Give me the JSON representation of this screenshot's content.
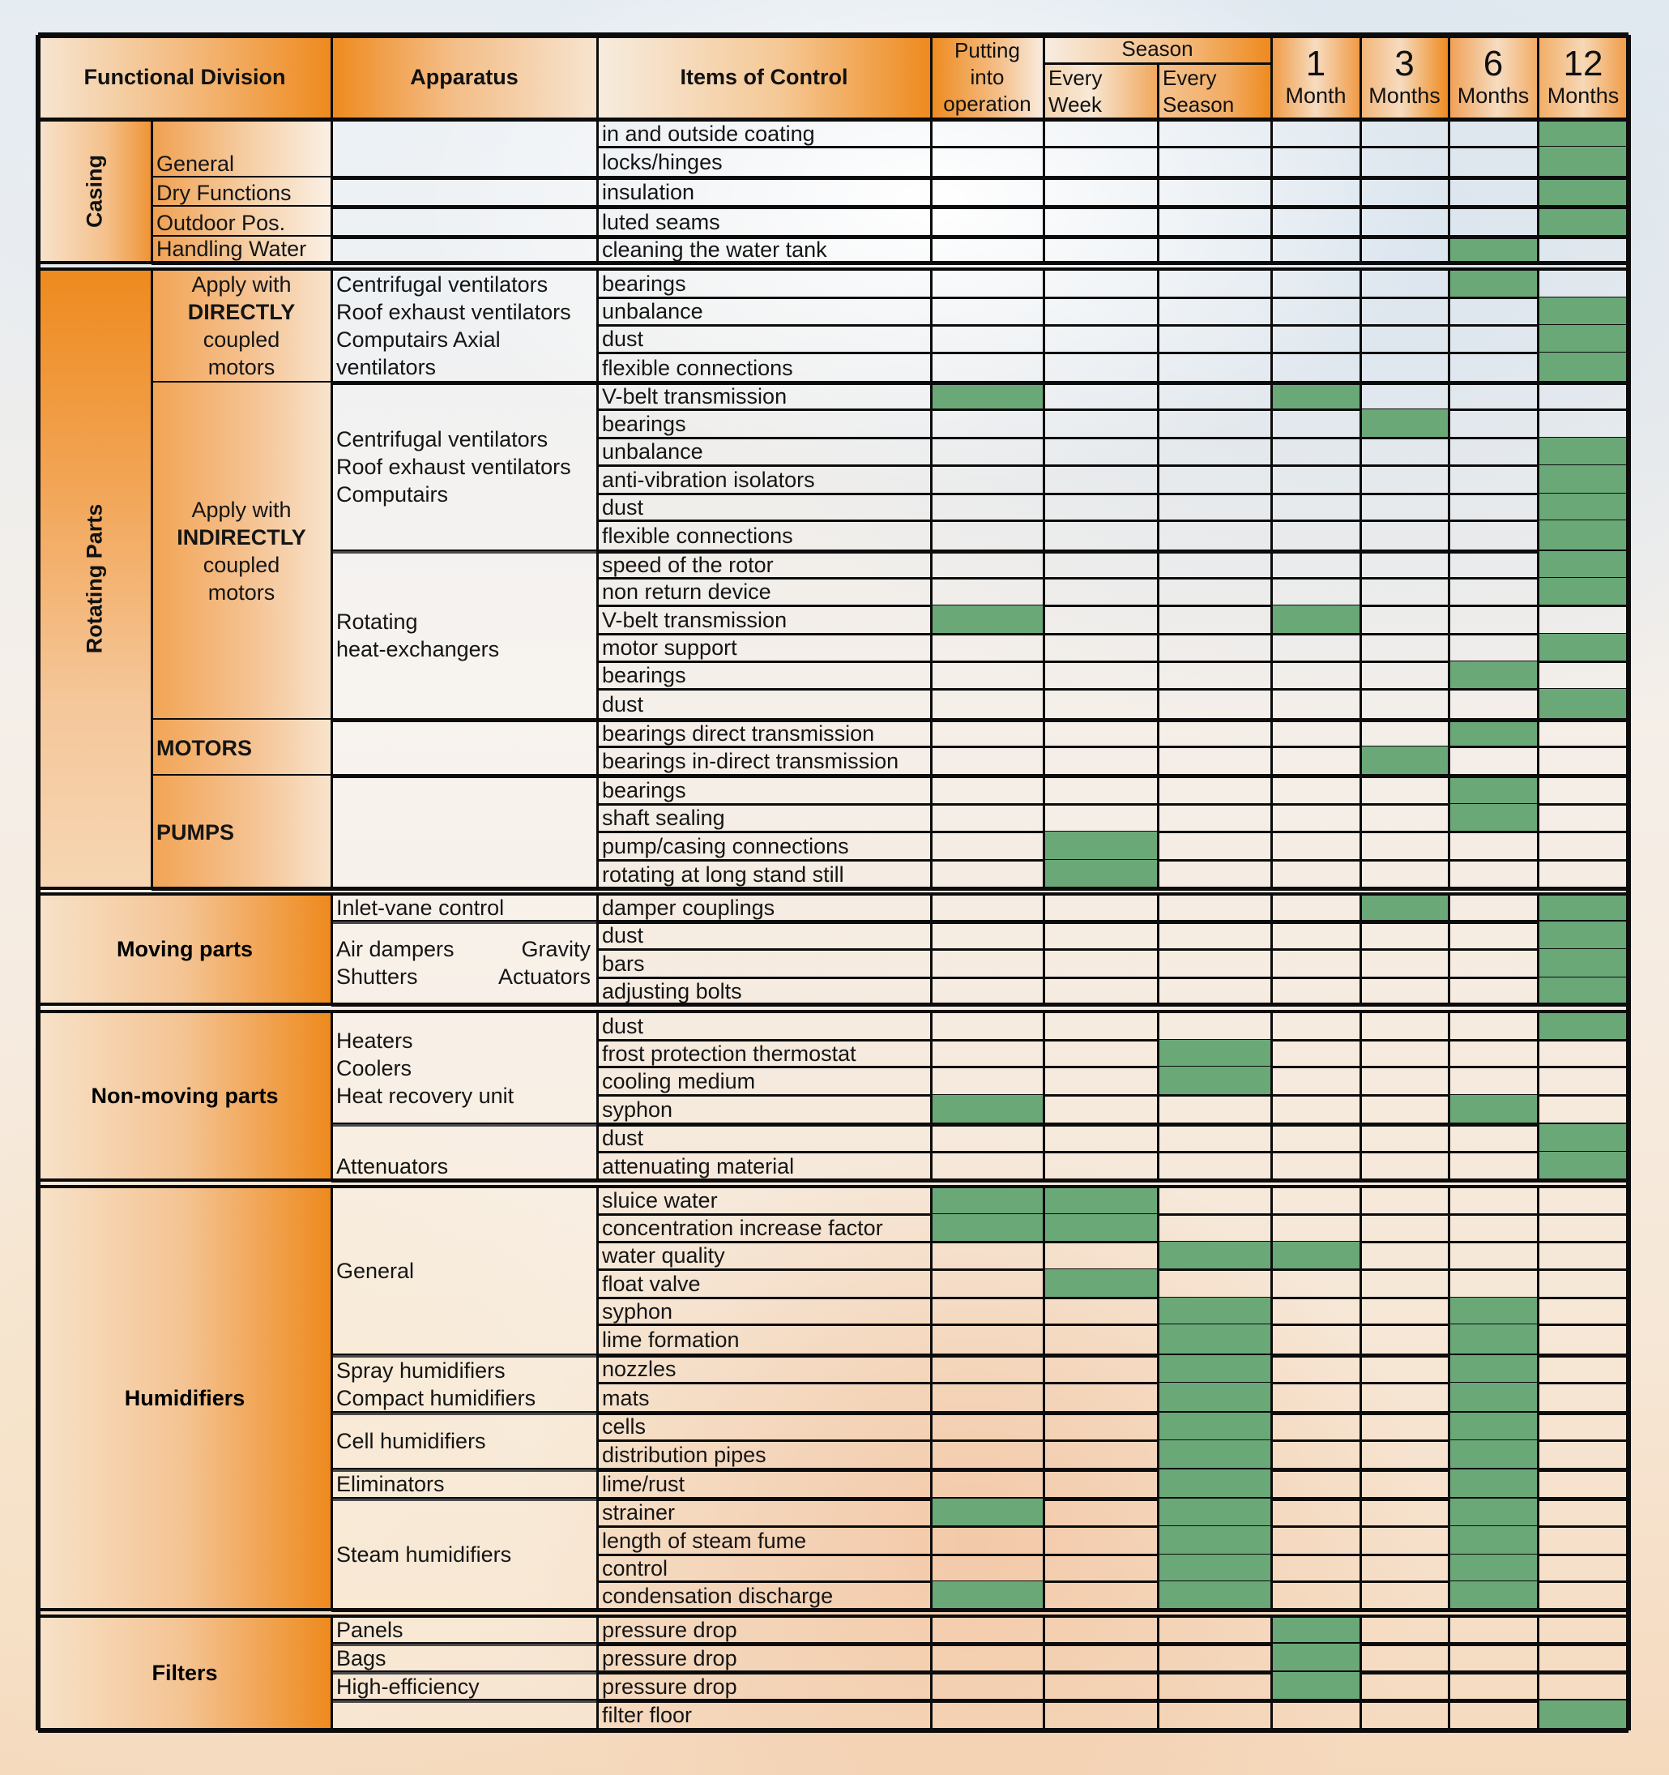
{
  "header": {
    "functional_division": "Functional Division",
    "apparatus": "Apparatus",
    "items_of_control": "Items of Control",
    "putting_into_operation": [
      "Putting",
      "into",
      "operation"
    ],
    "season_group": "Season",
    "every_week": [
      "Every",
      "Week"
    ],
    "every_season": [
      "Every",
      "Season"
    ],
    "month_1": {
      "num": "1",
      "label": "Month"
    },
    "month_3": {
      "num": "3",
      "label": "Months"
    },
    "month_6": {
      "num": "6",
      "label": "Months"
    },
    "month_12": {
      "num": "12",
      "label": "Months"
    }
  },
  "interval_columns": [
    "Putting into operation",
    "Every Week",
    "Every Season",
    "1 Month",
    "3 Months",
    "6 Months",
    "12 Months"
  ],
  "colors": {
    "check_green": "#6aa878",
    "header_orange": "#ee8a1e",
    "grid_line": "#0c0c0c"
  },
  "sections": [
    {
      "name": "Casing",
      "label_orientation": "vertical",
      "subgroups": [
        {
          "label": [
            "General"
          ],
          "apparatus": [],
          "items": [
            {
              "item": "in and outside coating",
              "checks": [
                0,
                0,
                0,
                0,
                0,
                0,
                1
              ]
            },
            {
              "item": "locks/hinges",
              "checks": [
                0,
                0,
                0,
                0,
                0,
                0,
                1
              ]
            }
          ]
        },
        {
          "label": [
            "Dry Functions"
          ],
          "apparatus": [],
          "items": [
            {
              "item": "insulation",
              "checks": [
                0,
                0,
                0,
                0,
                0,
                0,
                1
              ]
            }
          ]
        },
        {
          "label": [
            "Outdoor Pos."
          ],
          "apparatus": [],
          "items": [
            {
              "item": "luted seams",
              "checks": [
                0,
                0,
                0,
                0,
                0,
                0,
                1
              ]
            }
          ]
        },
        {
          "label": [
            "Handling Water"
          ],
          "apparatus": [],
          "items": [
            {
              "item": "cleaning the water tank",
              "checks": [
                0,
                0,
                0,
                0,
                0,
                1,
                0
              ]
            }
          ]
        }
      ]
    },
    {
      "name": "Rotating Parts",
      "label_orientation": "vertical",
      "subgroups": [
        {
          "label": [
            "Apply with",
            "DIRECTLY",
            "coupled",
            "motors"
          ],
          "apparatus_groups": [
            {
              "apparatus": [
                "Centrifugal ventilators",
                "Roof exhaust ventilators",
                "Computairs Axial",
                "ventilators"
              ],
              "items": [
                {
                  "item": "bearings",
                  "checks": [
                    0,
                    0,
                    0,
                    0,
                    0,
                    1,
                    0
                  ]
                },
                {
                  "item": "unbalance",
                  "checks": [
                    0,
                    0,
                    0,
                    0,
                    0,
                    0,
                    1
                  ]
                },
                {
                  "item": "dust",
                  "checks": [
                    0,
                    0,
                    0,
                    0,
                    0,
                    0,
                    1
                  ]
                },
                {
                  "item": "flexible connections",
                  "checks": [
                    0,
                    0,
                    0,
                    0,
                    0,
                    0,
                    1
                  ]
                }
              ]
            }
          ]
        },
        {
          "label": [
            "Apply with",
            "INDIRECTLY",
            "coupled",
            "motors"
          ],
          "apparatus_groups": [
            {
              "apparatus": [
                "Centrifugal ventilators",
                "Roof exhaust ventilators",
                "Computairs"
              ],
              "items": [
                {
                  "item": "V-belt transmission",
                  "checks": [
                    1,
                    0,
                    0,
                    1,
                    0,
                    0,
                    0
                  ]
                },
                {
                  "item": "bearings",
                  "checks": [
                    0,
                    0,
                    0,
                    0,
                    1,
                    0,
                    0
                  ]
                },
                {
                  "item": "unbalance",
                  "checks": [
                    0,
                    0,
                    0,
                    0,
                    0,
                    0,
                    1
                  ]
                },
                {
                  "item": "anti-vibration isolators",
                  "checks": [
                    0,
                    0,
                    0,
                    0,
                    0,
                    0,
                    1
                  ]
                },
                {
                  "item": "dust",
                  "checks": [
                    0,
                    0,
                    0,
                    0,
                    0,
                    0,
                    1
                  ]
                },
                {
                  "item": "flexible connections",
                  "checks": [
                    0,
                    0,
                    0,
                    0,
                    0,
                    0,
                    1
                  ]
                }
              ]
            },
            {
              "apparatus": [
                "Rotating",
                "heat-exchangers"
              ],
              "items": [
                {
                  "item": "speed of the rotor",
                  "checks": [
                    0,
                    0,
                    0,
                    0,
                    0,
                    0,
                    1
                  ]
                },
                {
                  "item": "non return device",
                  "checks": [
                    0,
                    0,
                    0,
                    0,
                    0,
                    0,
                    1
                  ]
                },
                {
                  "item": "V-belt transmission",
                  "checks": [
                    1,
                    0,
                    0,
                    1,
                    0,
                    0,
                    0
                  ]
                },
                {
                  "item": "motor support",
                  "checks": [
                    0,
                    0,
                    0,
                    0,
                    0,
                    0,
                    1
                  ]
                },
                {
                  "item": "bearings",
                  "checks": [
                    0,
                    0,
                    0,
                    0,
                    0,
                    1,
                    0
                  ]
                },
                {
                  "item": "dust",
                  "checks": [
                    0,
                    0,
                    0,
                    0,
                    0,
                    0,
                    1
                  ]
                }
              ]
            }
          ]
        },
        {
          "label": [
            "MOTORS"
          ],
          "apparatus_groups": [
            {
              "apparatus": [],
              "items": [
                {
                  "item": "bearings direct transmission",
                  "checks": [
                    0,
                    0,
                    0,
                    0,
                    0,
                    1,
                    0
                  ]
                },
                {
                  "item": "bearings in-direct transmission",
                  "checks": [
                    0,
                    0,
                    0,
                    0,
                    1,
                    0,
                    0
                  ]
                }
              ]
            }
          ]
        },
        {
          "label": [
            "PUMPS"
          ],
          "apparatus_groups": [
            {
              "apparatus": [],
              "items": [
                {
                  "item": "bearings",
                  "checks": [
                    0,
                    0,
                    0,
                    0,
                    0,
                    1,
                    0
                  ]
                },
                {
                  "item": "shaft sealing",
                  "checks": [
                    0,
                    0,
                    0,
                    0,
                    0,
                    1,
                    0
                  ]
                },
                {
                  "item": "pump/casing connections",
                  "checks": [
                    0,
                    1,
                    0,
                    0,
                    0,
                    0,
                    0
                  ]
                },
                {
                  "item": "rotating at long stand still",
                  "checks": [
                    0,
                    1,
                    0,
                    0,
                    0,
                    0,
                    0
                  ]
                }
              ]
            }
          ]
        }
      ]
    },
    {
      "name": "Moving parts",
      "label_orientation": "horizontal",
      "apparatus_groups": [
        {
          "apparatus": [
            "Inlet-vane control"
          ],
          "items": [
            {
              "item": "damper couplings",
              "checks": [
                0,
                0,
                0,
                0,
                1,
                0,
                1
              ]
            }
          ]
        },
        {
          "apparatus": [
            "Air dampers|Gravity",
            "Shutters|Actuators"
          ],
          "items": [
            {
              "item": "dust",
              "checks": [
                0,
                0,
                0,
                0,
                0,
                0,
                1
              ]
            },
            {
              "item": "bars",
              "checks": [
                0,
                0,
                0,
                0,
                0,
                0,
                1
              ]
            },
            {
              "item": "adjusting bolts",
              "checks": [
                0,
                0,
                0,
                0,
                0,
                0,
                1
              ]
            }
          ]
        }
      ]
    },
    {
      "name": "Non-moving parts",
      "label_orientation": "horizontal",
      "apparatus_groups": [
        {
          "apparatus": [
            "Heaters",
            "Coolers",
            "Heat recovery unit"
          ],
          "items": [
            {
              "item": "dust",
              "checks": [
                0,
                0,
                0,
                0,
                0,
                0,
                1
              ]
            },
            {
              "item": "frost protection thermostat",
              "checks": [
                0,
                0,
                1,
                0,
                0,
                0,
                0
              ]
            },
            {
              "item": "cooling medium",
              "checks": [
                0,
                0,
                1,
                0,
                0,
                0,
                0
              ]
            },
            {
              "item": "syphon",
              "checks": [
                1,
                0,
                0,
                0,
                0,
                1,
                0
              ]
            }
          ]
        },
        {
          "apparatus": [
            "Attenuators"
          ],
          "items": [
            {
              "item": "dust",
              "checks": [
                0,
                0,
                0,
                0,
                0,
                0,
                1
              ]
            },
            {
              "item": "attenuating material",
              "checks": [
                0,
                0,
                0,
                0,
                0,
                0,
                1
              ]
            }
          ]
        }
      ]
    },
    {
      "name": "Humidifiers",
      "label_orientation": "horizontal",
      "apparatus_groups": [
        {
          "apparatus": [
            "General"
          ],
          "items": [
            {
              "item": "sluice water",
              "checks": [
                1,
                1,
                0,
                0,
                0,
                0,
                0
              ]
            },
            {
              "item": "concentration increase factor",
              "checks": [
                1,
                1,
                0,
                0,
                0,
                0,
                0
              ]
            },
            {
              "item": "water quality",
              "checks": [
                0,
                0,
                1,
                1,
                0,
                0,
                0
              ]
            },
            {
              "item": "float valve",
              "checks": [
                0,
                1,
                0,
                0,
                0,
                0,
                0
              ]
            },
            {
              "item": "syphon",
              "checks": [
                0,
                0,
                1,
                0,
                0,
                1,
                0
              ]
            },
            {
              "item": "lime formation",
              "checks": [
                0,
                0,
                1,
                0,
                0,
                1,
                0
              ]
            }
          ]
        },
        {
          "apparatus": [
            "Spray humidifiers",
            "Compact humidifiers"
          ],
          "items": [
            {
              "item": "nozzles",
              "checks": [
                0,
                0,
                1,
                0,
                0,
                1,
                0
              ]
            },
            {
              "item": "mats",
              "checks": [
                0,
                0,
                1,
                0,
                0,
                1,
                0
              ]
            }
          ]
        },
        {
          "apparatus": [
            "Cell humidifiers"
          ],
          "items": [
            {
              "item": "cells",
              "checks": [
                0,
                0,
                1,
                0,
                0,
                1,
                0
              ]
            },
            {
              "item": "distribution pipes",
              "checks": [
                0,
                0,
                1,
                0,
                0,
                1,
                0
              ]
            }
          ]
        },
        {
          "apparatus": [
            "Eliminators"
          ],
          "items": [
            {
              "item": "lime/rust",
              "checks": [
                0,
                0,
                1,
                0,
                0,
                1,
                0
              ]
            }
          ]
        },
        {
          "apparatus": [
            "Steam humidifiers"
          ],
          "items": [
            {
              "item": "strainer",
              "checks": [
                1,
                0,
                1,
                0,
                0,
                1,
                0
              ]
            },
            {
              "item": "length of steam fume",
              "checks": [
                0,
                0,
                1,
                0,
                0,
                1,
                0
              ]
            },
            {
              "item": "control",
              "checks": [
                0,
                0,
                1,
                0,
                0,
                1,
                0
              ]
            },
            {
              "item": "condensation discharge",
              "checks": [
                1,
                0,
                1,
                0,
                0,
                1,
                0
              ]
            }
          ]
        }
      ]
    },
    {
      "name": "Filters",
      "label_orientation": "horizontal",
      "apparatus_groups": [
        {
          "apparatus": [
            "Panels"
          ],
          "items": [
            {
              "item": "pressure drop",
              "checks": [
                0,
                0,
                0,
                1,
                0,
                0,
                0
              ]
            }
          ]
        },
        {
          "apparatus": [
            "Bags"
          ],
          "items": [
            {
              "item": "pressure drop",
              "checks": [
                0,
                0,
                0,
                1,
                0,
                0,
                0
              ]
            }
          ]
        },
        {
          "apparatus": [
            "High-efficiency"
          ],
          "items": [
            {
              "item": "pressure drop",
              "checks": [
                0,
                0,
                0,
                1,
                0,
                0,
                0
              ]
            }
          ]
        },
        {
          "apparatus": [],
          "items": [
            {
              "item": "filter floor",
              "checks": [
                0,
                0,
                0,
                0,
                0,
                0,
                1
              ]
            }
          ]
        }
      ]
    }
  ]
}
